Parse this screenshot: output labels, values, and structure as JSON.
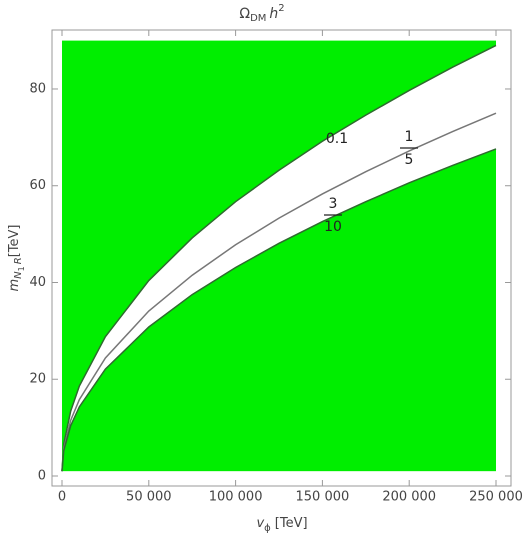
{
  "chart_data": {
    "type": "contour",
    "title": {
      "symbol": "Ω",
      "subscript": "DM",
      "base": "h",
      "superscript": "2"
    },
    "x_label": {
      "symbol": "v",
      "subscript": "ϕ",
      "unit": "[TeV]"
    },
    "y_label": {
      "symbol": "m",
      "subscript": "N",
      "subsubscript": "1",
      "subscript2": "R",
      "unit": "[TeV]"
    },
    "xlim": [
      0,
      250000
    ],
    "ylim": [
      0,
      90
    ],
    "xticks": [
      0,
      {
        "value": 50000,
        "label": "50 000"
      },
      {
        "value": 100000,
        "label": "100 000"
      },
      {
        "value": 150000,
        "label": "150 000"
      },
      {
        "value": 200000,
        "label": "200 000"
      },
      {
        "value": 250000,
        "label": "250 000"
      }
    ],
    "yticks": [
      0,
      20,
      40,
      60,
      80
    ],
    "region": {
      "x": [
        0,
        250000
      ],
      "y": [
        1,
        90
      ],
      "color": "#00ee00"
    },
    "x": [
      0,
      1000,
      5000,
      10000,
      25000,
      50000,
      75000,
      100000,
      125000,
      150000,
      175000,
      200000,
      225000,
      250000
    ],
    "contours": [
      {
        "level": 0.1,
        "label": "0.1",
        "color": "#2e6b2e",
        "values": [
          1,
          6.6,
          13.4,
          18.6,
          28.8,
          40.4,
          49.2,
          56.7,
          63.2,
          69.2,
          74.6,
          79.7,
          84.5,
          89.0
        ]
      },
      {
        "level": 0.2,
        "label_numerator": 1,
        "label_denominator": 5,
        "color": "#777777",
        "values": [
          1,
          5.7,
          11.5,
          15.8,
          24.4,
          34.1,
          41.5,
          47.8,
          53.3,
          58.3,
          62.9,
          67.2,
          71.2,
          75.0
        ]
      },
      {
        "level": 0.3,
        "label_numerator": 3,
        "label_denominator": 10,
        "color": "#2e6b2e",
        "values": [
          1,
          5.2,
          10.4,
          14.3,
          22.1,
          30.8,
          37.5,
          43.1,
          48.1,
          52.6,
          56.7,
          60.6,
          64.2,
          67.6
        ]
      }
    ]
  }
}
